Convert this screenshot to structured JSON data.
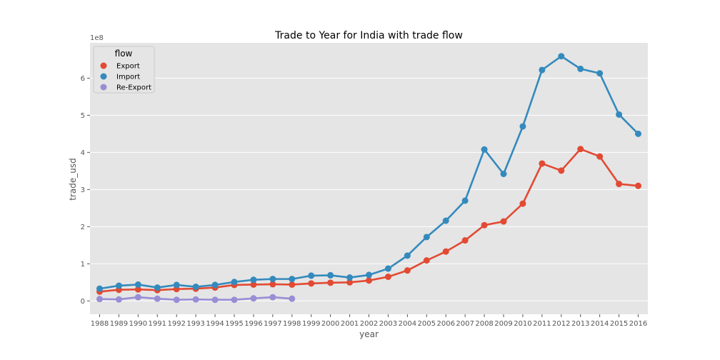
{
  "chart_data": {
    "type": "line",
    "title": "Trade to Year for India with trade flow",
    "xlabel": "year",
    "ylabel": "trade_usd",
    "y_scale_label": "1e8",
    "y_tick_values": [
      0,
      1,
      2,
      3,
      4,
      5,
      6
    ],
    "y_tick_labels": [
      "0",
      "1",
      "2",
      "3",
      "4",
      "5",
      "6"
    ],
    "ylim": [
      -0.36,
      6.95
    ],
    "grid": true,
    "legend_position": "top-left",
    "legend_title": "flow",
    "categories": [
      "1988",
      "1989",
      "1990",
      "1991",
      "1992",
      "1993",
      "1994",
      "1995",
      "1996",
      "1997",
      "1998",
      "1999",
      "2000",
      "2001",
      "2002",
      "2003",
      "2004",
      "2005",
      "2006",
      "2007",
      "2008",
      "2009",
      "2010",
      "2011",
      "2012",
      "2013",
      "2014",
      "2015",
      "2016"
    ],
    "series": [
      {
        "name": "Export",
        "color": "#E24A33",
        "values": [
          0.25,
          0.3,
          0.31,
          0.29,
          0.32,
          0.33,
          0.36,
          0.43,
          0.44,
          0.45,
          0.44,
          0.47,
          0.49,
          0.5,
          0.55,
          0.65,
          0.82,
          1.09,
          1.33,
          1.63,
          2.04,
          2.14,
          2.62,
          3.7,
          3.51,
          4.09,
          3.89,
          3.15,
          3.1
        ]
      },
      {
        "name": "Import",
        "color": "#348ABD",
        "values": [
          0.33,
          0.41,
          0.44,
          0.36,
          0.43,
          0.38,
          0.43,
          0.51,
          0.57,
          0.59,
          0.59,
          0.68,
          0.69,
          0.63,
          0.7,
          0.87,
          1.22,
          1.72,
          2.16,
          2.7,
          4.08,
          3.42,
          4.7,
          6.22,
          6.59,
          6.25,
          6.13,
          5.02,
          4.5
        ]
      },
      {
        "name": "Re-Export",
        "color": "#988ED5",
        "values": [
          0.05,
          0.04,
          0.1,
          0.06,
          0.03,
          0.04,
          0.03,
          0.03,
          0.07,
          0.1,
          0.06,
          null,
          null,
          null,
          null,
          null,
          null,
          null,
          null,
          null,
          null,
          null,
          null,
          null,
          null,
          null,
          null,
          null,
          null
        ]
      }
    ]
  },
  "style": {
    "plot_background": "#E5E5E5",
    "grid_color": "#FFFFFF"
  }
}
